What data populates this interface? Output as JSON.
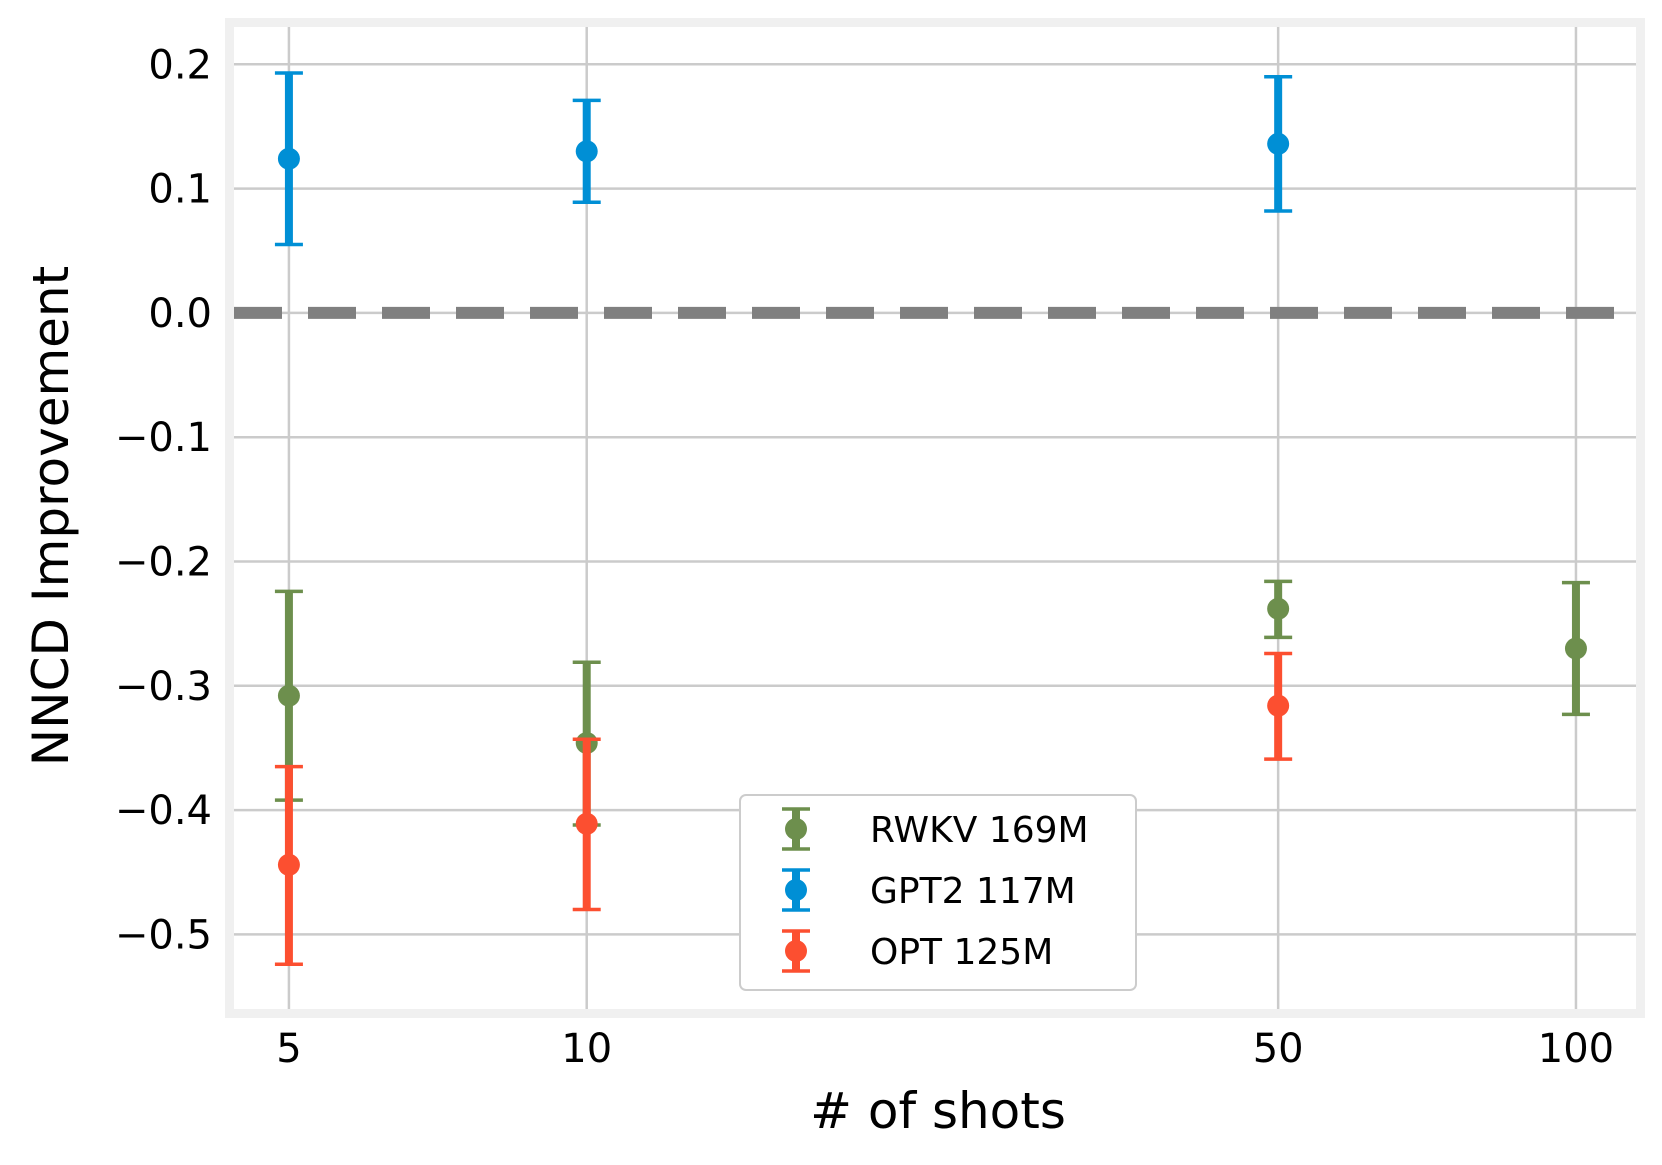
{
  "chart_data": {
    "type": "scatter",
    "xlabel": "# of shots",
    "ylabel": "NNCD Improvement",
    "x_scale": "log",
    "xlim": [
      4.4,
      115
    ],
    "ylim": [
      -0.56,
      0.23
    ],
    "x_ticks": [
      {
        "value": 5,
        "label": "5"
      },
      {
        "value": 10,
        "label": "10"
      },
      {
        "value": 50,
        "label": "50"
      },
      {
        "value": 100,
        "label": "100"
      }
    ],
    "y_ticks": [
      {
        "value": 0.2,
        "label": "0.2"
      },
      {
        "value": 0.1,
        "label": "0.1"
      },
      {
        "value": 0.0,
        "label": "0.0"
      },
      {
        "value": -0.1,
        "label": "−0.1"
      },
      {
        "value": -0.2,
        "label": "−0.2"
      },
      {
        "value": -0.3,
        "label": "−0.3"
      },
      {
        "value": -0.4,
        "label": "−0.4"
      },
      {
        "value": -0.5,
        "label": "−0.5"
      }
    ],
    "grid": true,
    "reference_line": {
      "y": 0.0,
      "style": "dashed",
      "color": "#808080"
    },
    "legend_position": "lower-center",
    "series": [
      {
        "name": "RWKV 169M",
        "color": "#6d8f4d",
        "points": [
          {
            "x": 5,
            "y": -0.308,
            "low": -0.392,
            "high": -0.224
          },
          {
            "x": 10,
            "y": -0.346,
            "low": -0.412,
            "high": -0.281
          },
          {
            "x": 50,
            "y": -0.238,
            "low": -0.261,
            "high": -0.216
          },
          {
            "x": 100,
            "y": -0.27,
            "low": -0.323,
            "high": -0.217
          }
        ]
      },
      {
        "name": "GPT2 117M",
        "color": "#008fd5",
        "points": [
          {
            "x": 5,
            "y": 0.124,
            "low": 0.055,
            "high": 0.193
          },
          {
            "x": 10,
            "y": 0.13,
            "low": 0.089,
            "high": 0.171
          },
          {
            "x": 50,
            "y": 0.136,
            "low": 0.082,
            "high": 0.19
          }
        ]
      },
      {
        "name": "OPT 125M",
        "color": "#fc4f30",
        "points": [
          {
            "x": 5,
            "y": -0.444,
            "low": -0.524,
            "high": -0.365
          },
          {
            "x": 10,
            "y": -0.411,
            "low": -0.48,
            "high": -0.343
          },
          {
            "x": 50,
            "y": -0.316,
            "low": -0.359,
            "high": -0.274
          }
        ]
      }
    ]
  }
}
